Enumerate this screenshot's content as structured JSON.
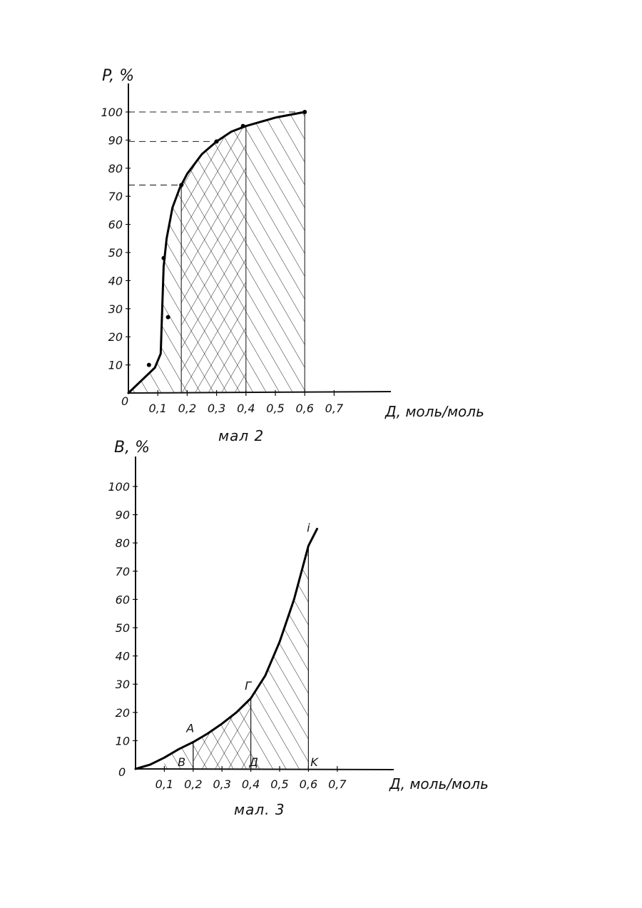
{
  "chart_data": [
    {
      "type": "line",
      "title": "мал 2",
      "ylabel": "P, %",
      "xlabel": "Д, моль/моль",
      "origin_label": "0",
      "xlim": [
        0,
        0.7
      ],
      "ylim": [
        0,
        100
      ],
      "x_ticks": [
        "0,1",
        "0,2",
        "0,3",
        "0,4",
        "0,5",
        "0,6",
        "0,7"
      ],
      "x_tick_values": [
        0.1,
        0.2,
        0.3,
        0.4,
        0.5,
        0.6,
        0.7
      ],
      "y_ticks": [
        "10",
        "20",
        "30",
        "40",
        "50",
        "60",
        "70",
        "80",
        "90",
        "100"
      ],
      "y_tick_values": [
        10,
        20,
        30,
        40,
        50,
        60,
        70,
        80,
        90,
        100
      ],
      "series": [
        {
          "x": [
            0.0,
            0.05,
            0.09,
            0.11,
            0.115,
            0.12,
            0.13,
            0.15,
            0.175,
            0.2,
            0.25,
            0.3,
            0.35,
            0.4,
            0.5,
            0.6
          ],
          "y": [
            0,
            5,
            9,
            14,
            30,
            45,
            55,
            66,
            73,
            78,
            85,
            89.5,
            93,
            95,
            98,
            100
          ]
        }
      ],
      "points": [
        {
          "x": 0.07,
          "y": 10
        },
        {
          "x": 0.12,
          "y": 48
        },
        {
          "x": 0.135,
          "y": 27
        },
        {
          "x": 0.18,
          "y": 74
        },
        {
          "x": 0.3,
          "y": 89.5
        },
        {
          "x": 0.39,
          "y": 95
        },
        {
          "x": 0.6,
          "y": 100
        }
      ],
      "reference_lines_y": [
        74,
        89.5,
        100
      ],
      "shaded_regions": [
        {
          "x_from": 0.0,
          "x_to": 0.18,
          "hatch": "single"
        },
        {
          "x_from": 0.18,
          "x_to": 0.4,
          "hatch": "cross"
        },
        {
          "x_from": 0.4,
          "x_to": 0.6,
          "hatch": "single"
        }
      ]
    },
    {
      "type": "line",
      "title": "мал. 3",
      "ylabel": "B, %",
      "xlabel": "Д, моль/моль",
      "origin_label": "0",
      "xlim": [
        0,
        0.7
      ],
      "ylim": [
        0,
        100
      ],
      "x_ticks": [
        "0,1",
        "0,2",
        "0,3",
        "0,4",
        "0,5",
        "0,6",
        "0,7"
      ],
      "x_tick_values": [
        0.1,
        0.2,
        0.3,
        0.4,
        0.5,
        0.6,
        0.7
      ],
      "y_ticks": [
        "10",
        "20",
        "30",
        "40",
        "50",
        "60",
        "70",
        "80",
        "90",
        "100"
      ],
      "y_tick_values": [
        10,
        20,
        30,
        40,
        50,
        60,
        70,
        80,
        90,
        100
      ],
      "series": [
        {
          "x": [
            0.0,
            0.05,
            0.1,
            0.15,
            0.2,
            0.25,
            0.3,
            0.35,
            0.4,
            0.45,
            0.5,
            0.55,
            0.6,
            0.63
          ],
          "y": [
            0,
            1.5,
            4,
            7,
            9.5,
            12.5,
            16,
            20,
            25,
            33,
            45,
            60,
            79,
            85
          ]
        }
      ],
      "point_labels": [
        {
          "text": "A",
          "x": 0.19,
          "y": 13
        },
        {
          "text": "B",
          "x": 0.16,
          "y": 1
        },
        {
          "text": "Г",
          "x": 0.39,
          "y": 28
        },
        {
          "text": "Д",
          "x": 0.41,
          "y": 1
        },
        {
          "text": "i",
          "x": 0.6,
          "y": 84
        },
        {
          "text": "K",
          "x": 0.62,
          "y": 1
        }
      ],
      "vertical_lines_x": [
        0.2,
        0.4,
        0.6
      ],
      "shaded_regions": [
        {
          "x_from": 0.1,
          "x_to": 0.2,
          "hatch": "single"
        },
        {
          "x_from": 0.2,
          "x_to": 0.4,
          "hatch": "cross"
        },
        {
          "x_from": 0.4,
          "x_to": 0.6,
          "hatch": "single"
        }
      ]
    }
  ]
}
